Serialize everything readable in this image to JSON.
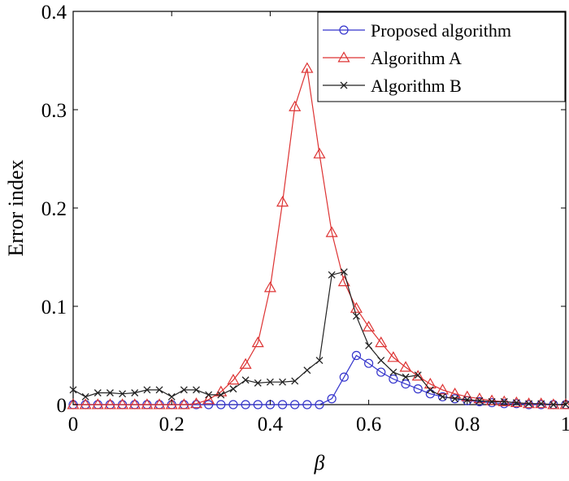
{
  "chart_data": {
    "type": "line",
    "xlabel": "β",
    "ylabel": "Error index",
    "xlim": [
      0,
      1
    ],
    "ylim": [
      0,
      0.4
    ],
    "x_ticks": [
      0,
      0.2,
      0.4,
      0.6,
      0.8,
      1
    ],
    "y_ticks": [
      0,
      0.1,
      0.2,
      0.3,
      0.4
    ],
    "x_tick_labels": [
      "0",
      "0.2",
      "0.4",
      "0.6",
      "0.8",
      "1"
    ],
    "y_tick_labels": [
      "0",
      "0.1",
      "0.2",
      "0.3",
      "0.4"
    ],
    "grid": false,
    "legend_position": "top-right",
    "x": [
      0,
      0.025,
      0.05,
      0.075,
      0.1,
      0.125,
      0.15,
      0.175,
      0.2,
      0.225,
      0.25,
      0.275,
      0.3,
      0.325,
      0.35,
      0.375,
      0.4,
      0.425,
      0.45,
      0.475,
      0.5,
      0.525,
      0.55,
      0.575,
      0.6,
      0.625,
      0.65,
      0.675,
      0.7,
      0.725,
      0.75,
      0.775,
      0.8,
      0.825,
      0.85,
      0.875,
      0.9,
      0.925,
      0.95,
      0.975,
      1
    ],
    "series": [
      {
        "name": "Proposed algorithm",
        "color": "#3333cc",
        "marker": "circle",
        "values": [
          0,
          0,
          0,
          0,
          0,
          0,
          0,
          0,
          0,
          0,
          0,
          0,
          0,
          0,
          0,
          0,
          0,
          0,
          0,
          0,
          0,
          0.006,
          0.028,
          0.05,
          0.042,
          0.033,
          0.026,
          0.021,
          0.016,
          0.011,
          0.008,
          0.006,
          0.004,
          0.003,
          0.002,
          0.001,
          0.001,
          0,
          0,
          0,
          0
        ]
      },
      {
        "name": "Algorithm A",
        "color": "#dd3333",
        "marker": "triangle",
        "values": [
          0,
          0,
          0,
          0,
          0,
          0,
          0,
          0,
          0,
          0,
          0.001,
          0.005,
          0.013,
          0.025,
          0.041,
          0.063,
          0.119,
          0.206,
          0.303,
          0.342,
          0.255,
          0.175,
          0.125,
          0.098,
          0.079,
          0.063,
          0.048,
          0.038,
          0.029,
          0.021,
          0.015,
          0.011,
          0.008,
          0.006,
          0.004,
          0.003,
          0.002,
          0.001,
          0.001,
          0,
          0
        ]
      },
      {
        "name": "Algorithm B",
        "color": "#222222",
        "marker": "cross",
        "values": [
          0.015,
          0.008,
          0.012,
          0.012,
          0.011,
          0.012,
          0.015,
          0.015,
          0.008,
          0.015,
          0.015,
          0.01,
          0.01,
          0.016,
          0.025,
          0.022,
          0.023,
          0.023,
          0.024,
          0.035,
          0.045,
          0.132,
          0.135,
          0.09,
          0.06,
          0.045,
          0.033,
          0.028,
          0.03,
          0.015,
          0.008,
          0.006,
          0.005,
          0.004,
          0.003,
          0.003,
          0.002,
          0.001,
          0.001,
          0,
          0
        ]
      }
    ]
  }
}
